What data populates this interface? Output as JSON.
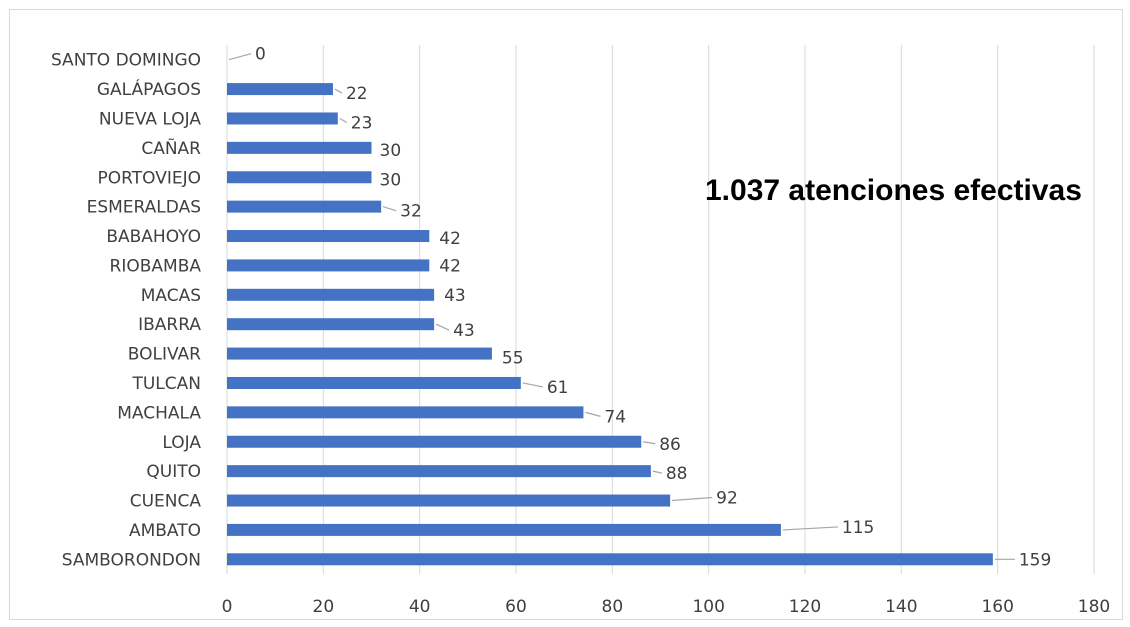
{
  "chart_data": {
    "type": "bar",
    "orientation": "horizontal",
    "categories": [
      "SAMBORONDON",
      "AMBATO",
      "CUENCA",
      "QUITO",
      "LOJA",
      "MACHALA",
      "TULCAN",
      "BOLIVAR",
      "IBARRA",
      "MACAS",
      "RIOBAMBA",
      "BABAHOYO",
      "ESMERALDAS",
      "PORTOVIEJO",
      "CAÑAR",
      "NUEVA LOJA",
      "GALÁPAGOS",
      "SANTO DOMINGO"
    ],
    "values": [
      159,
      115,
      92,
      88,
      86,
      74,
      61,
      55,
      43,
      43,
      42,
      42,
      32,
      30,
      30,
      23,
      22,
      0
    ],
    "xlim": [
      0,
      180
    ],
    "xticks": [
      0,
      20,
      40,
      60,
      80,
      100,
      120,
      140,
      160,
      180
    ],
    "grid": true,
    "data_labels": true,
    "bar_color": "#4472c4",
    "annotation": "1.037 atenciones efectivas"
  }
}
